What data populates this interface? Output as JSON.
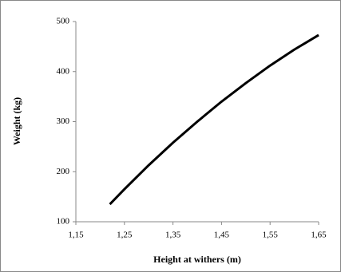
{
  "chart_data": {
    "type": "line",
    "x_label": "Height at withers  (m)",
    "y_label": "Weight (kg)",
    "x": [
      1.22,
      1.25,
      1.3,
      1.35,
      1.4,
      1.45,
      1.5,
      1.55,
      1.6,
      1.65
    ],
    "series": [
      {
        "name": "Weight",
        "color": "#000000",
        "values": [
          135,
          165,
          213,
          258,
          300,
          340,
          377,
          412,
          444,
          473
        ]
      }
    ],
    "xlim": [
      1.15,
      1.65
    ],
    "xticks": [
      {
        "value": 1.15,
        "label": "1,15"
      },
      {
        "value": 1.25,
        "label": "1,25"
      },
      {
        "value": 1.35,
        "label": "1,35"
      },
      {
        "value": 1.45,
        "label": "1,45"
      },
      {
        "value": 1.55,
        "label": "1,55"
      },
      {
        "value": 1.65,
        "label": "1,65"
      }
    ],
    "ylim": [
      100,
      500
    ],
    "yticks": [
      100,
      200,
      300,
      400,
      500
    ],
    "grid": false
  }
}
